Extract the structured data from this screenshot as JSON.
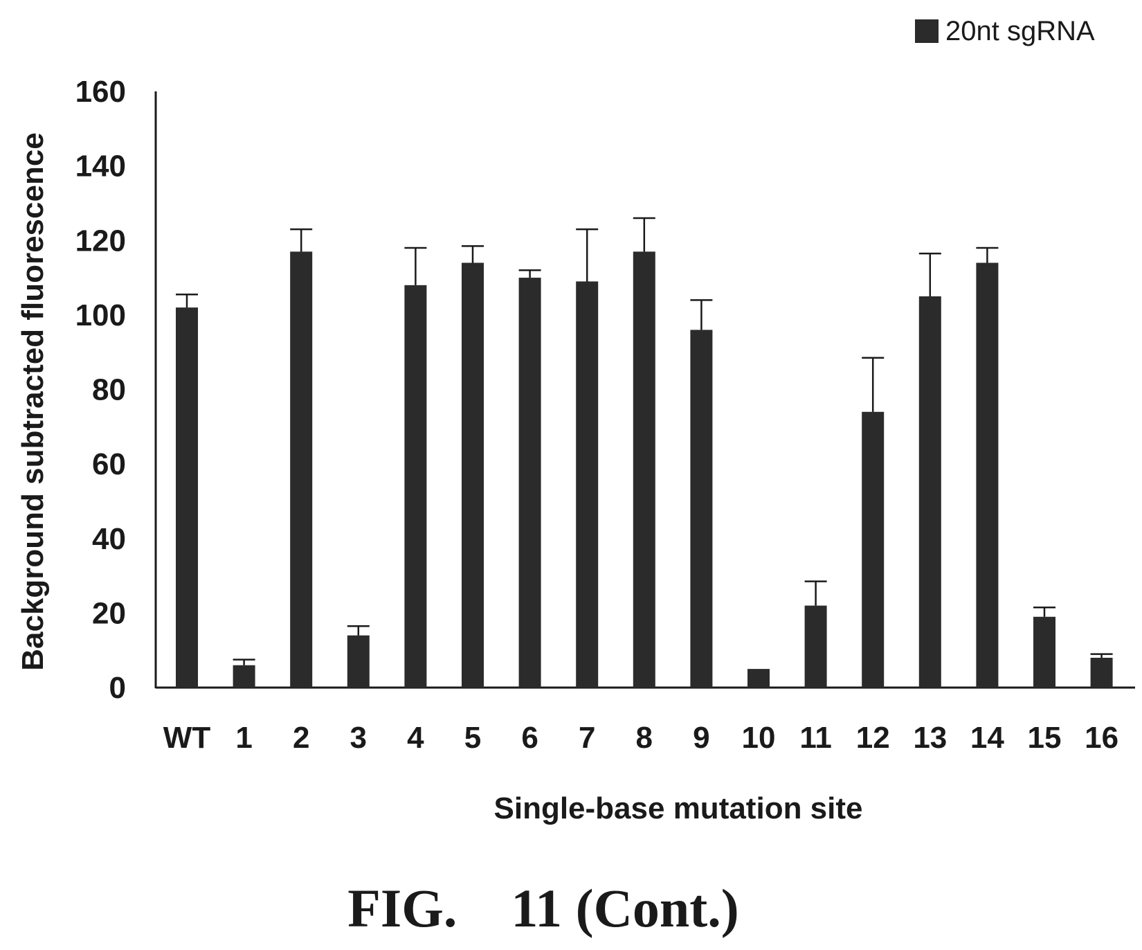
{
  "figure": {
    "caption": "FIG.    11 (Cont.)"
  },
  "chart_data": {
    "type": "bar",
    "title": "",
    "xlabel": "Single-base mutation site",
    "ylabel": "Background subtracted fluorescence",
    "ylim": [
      0,
      160
    ],
    "yticks": [
      0,
      20,
      40,
      60,
      80,
      100,
      120,
      140,
      160
    ],
    "grid": false,
    "legend": {
      "placement": "top-right",
      "entries": [
        "20nt sgRNA"
      ]
    },
    "categories": [
      "WT",
      "1",
      "2",
      "3",
      "4",
      "5",
      "6",
      "7",
      "8",
      "9",
      "10",
      "11",
      "12",
      "13",
      "14",
      "15",
      "16"
    ],
    "series": [
      {
        "name": "20nt sgRNA",
        "color": "#2b2b2b",
        "values": [
          102,
          6,
          117,
          14,
          108,
          114,
          110,
          109,
          117,
          96,
          5,
          22,
          74,
          105,
          114,
          19,
          8
        ],
        "errors": [
          3.5,
          1.5,
          6,
          2.5,
          10,
          4.5,
          2,
          14,
          9,
          8,
          0,
          6.5,
          14.5,
          11.5,
          4,
          2.5,
          1
        ]
      }
    ]
  }
}
